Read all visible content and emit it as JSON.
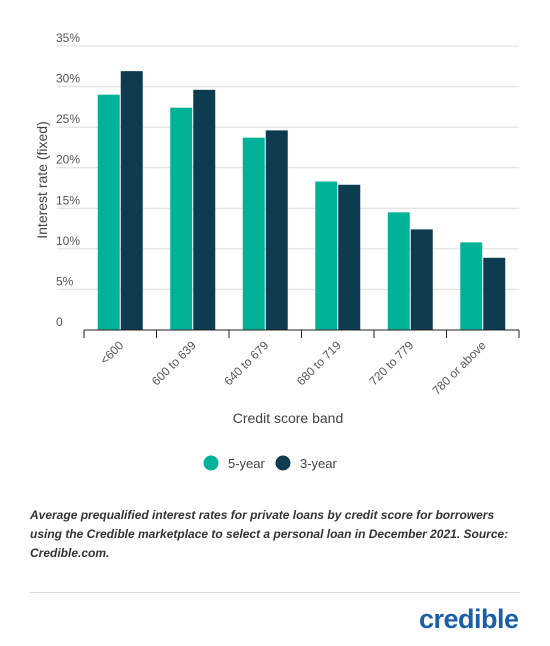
{
  "chart_data": {
    "type": "bar",
    "categories": [
      "<600",
      "600 to 639",
      "640 to 679",
      "680 to 719",
      "720 to 779",
      "780 or above"
    ],
    "series": [
      {
        "name": "5-year",
        "color": "#00B398",
        "values": [
          29.0,
          27.4,
          23.7,
          18.3,
          14.5,
          10.8
        ]
      },
      {
        "name": "3-year",
        "color": "#0D3B4F",
        "values": [
          31.9,
          29.6,
          24.6,
          17.9,
          12.4,
          8.9
        ]
      }
    ],
    "ylim": [
      0,
      35
    ],
    "yticks": [
      "0",
      "5%",
      "10%",
      "15%",
      "20%",
      "25%",
      "30%",
      "35%"
    ],
    "ytick_values": [
      0,
      5,
      10,
      15,
      20,
      25,
      30,
      35
    ],
    "xlabel": "Credit score band",
    "ylabel": "Interest rate (fixed)",
    "grid": true,
    "legend_position": "bottom-center"
  },
  "caption": "Average prequalified interest rates for private loans by credit score for borrowers using the Credible marketplace to select a personal loan in December 2021. Source: Credible.com.",
  "logo": {
    "text": "credible",
    "color": "#1B5FAA"
  }
}
